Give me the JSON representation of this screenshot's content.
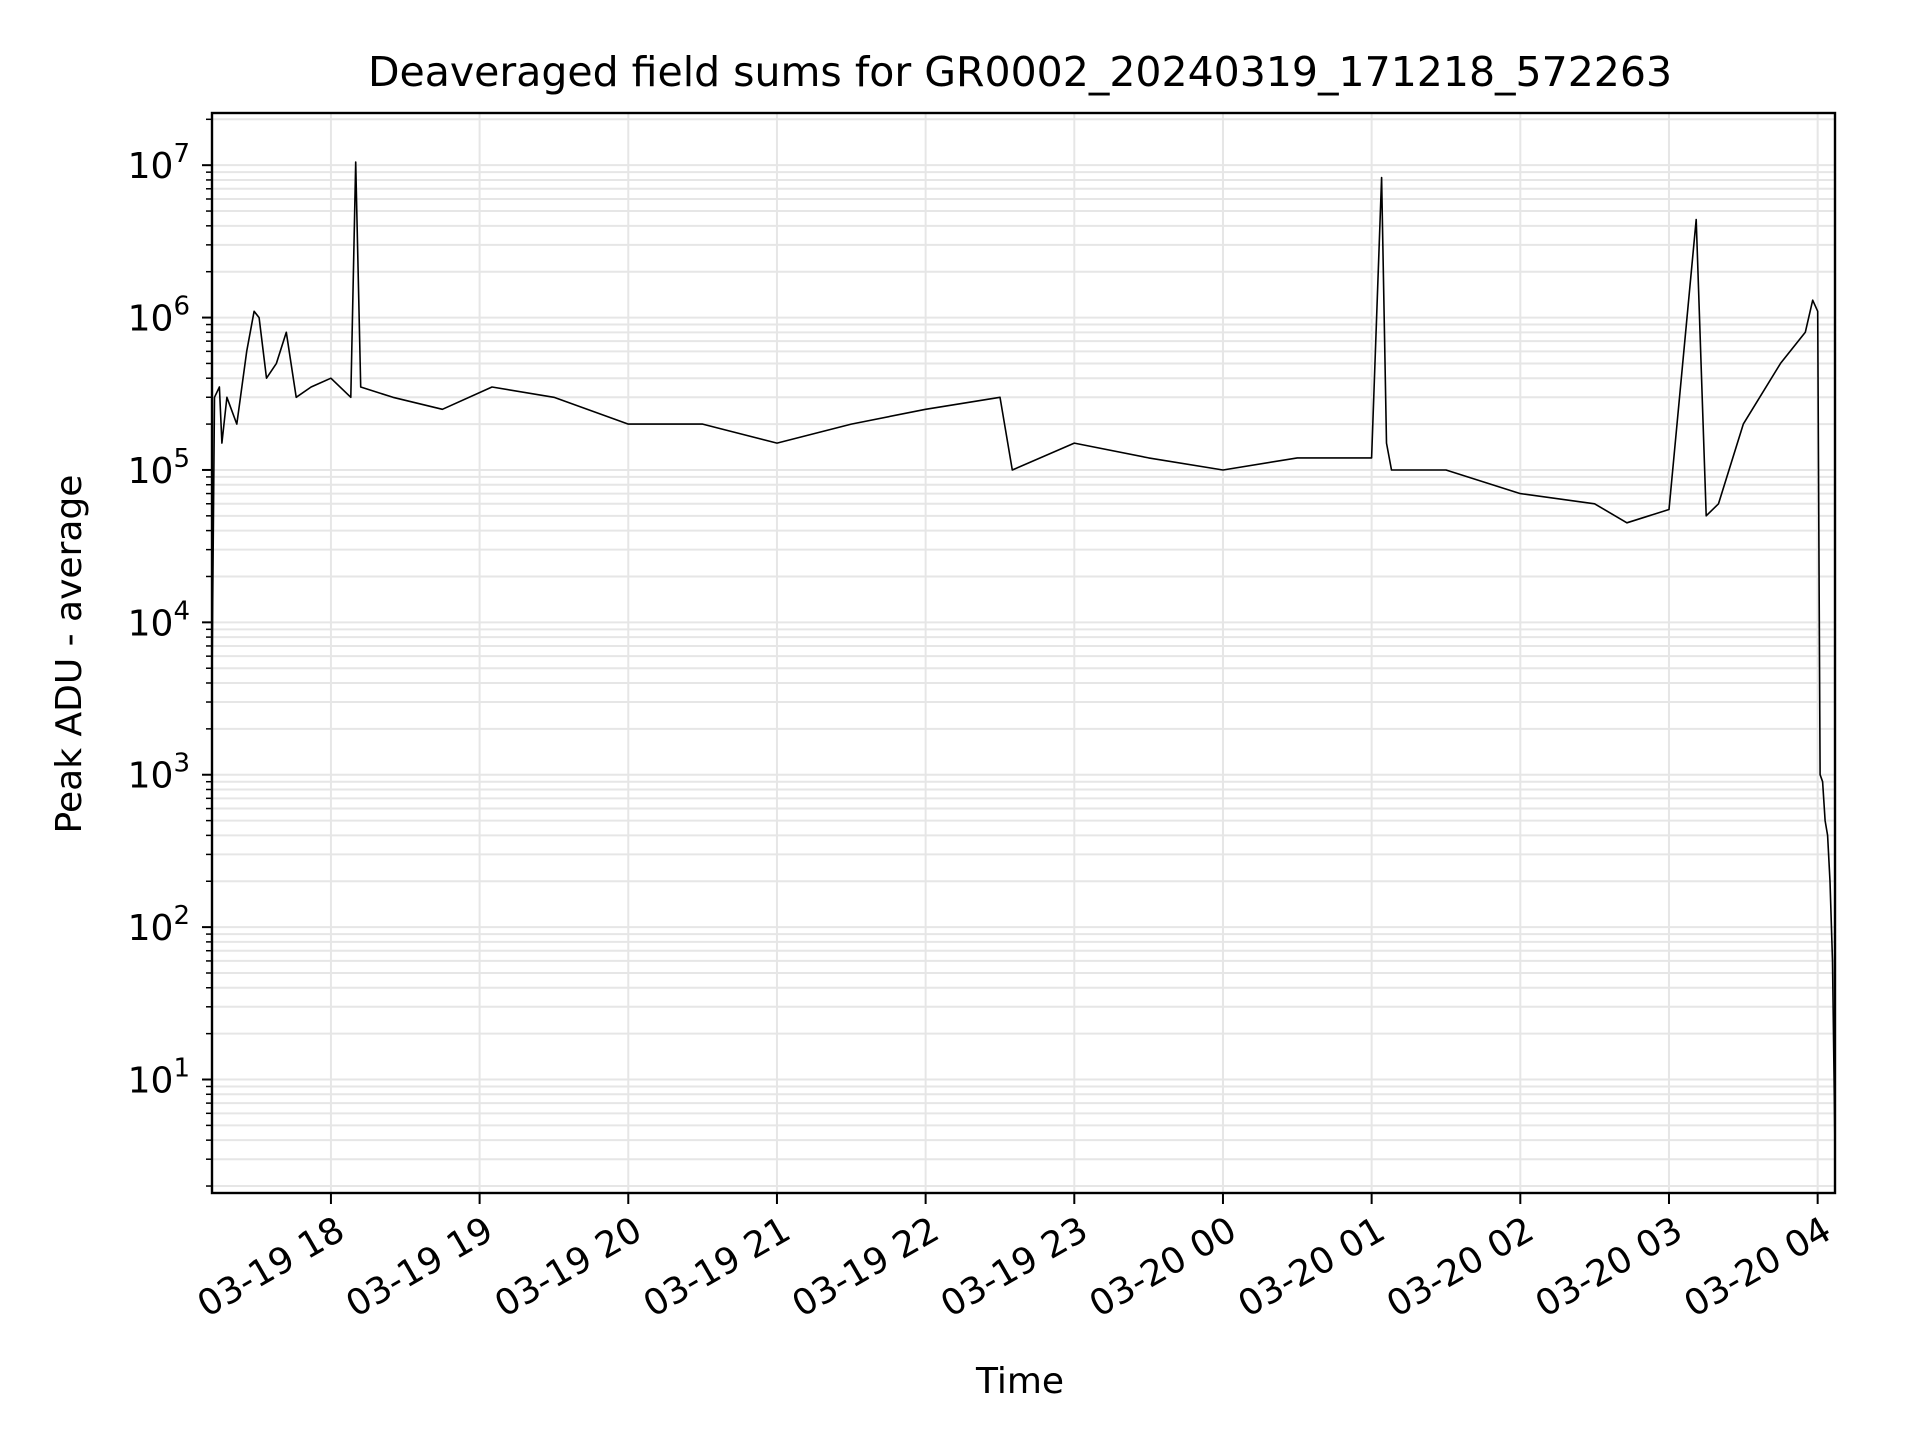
{
  "chart_data": {
    "type": "line",
    "title": "Deaveraged field sums for GR0002_20240319_171218_572263",
    "xlabel": "Time",
    "ylabel": "Peak ADU - average",
    "yscale": "log",
    "grid": true,
    "legend": "none",
    "line_color": "#000000",
    "grid_color": "#e6e6e6",
    "xlim": [
      "2024-03-19 17:12",
      "2024-03-20 04:07"
    ],
    "ylim": [
      1.8,
      22000000
    ],
    "x_ticks": [
      "03-19 18",
      "03-19 19",
      "03-19 20",
      "03-19 21",
      "03-19 22",
      "03-19 23",
      "03-20 00",
      "03-20 01",
      "03-20 02",
      "03-20 03",
      "03-20 04"
    ],
    "y_ticks": [
      {
        "base": "10",
        "exp": "1",
        "value": 10
      },
      {
        "base": "10",
        "exp": "2",
        "value": 100
      },
      {
        "base": "10",
        "exp": "3",
        "value": 1000
      },
      {
        "base": "10",
        "exp": "4",
        "value": 10000
      },
      {
        "base": "10",
        "exp": "5",
        "value": 100000
      },
      {
        "base": "10",
        "exp": "6",
        "value": 1000000
      },
      {
        "base": "10",
        "exp": "7",
        "value": 10000000
      }
    ],
    "series": [
      {
        "x": [
          "2024-03-19 17:12",
          "2024-03-19 17:13",
          "2024-03-19 17:15",
          "2024-03-19 17:16",
          "2024-03-19 17:18",
          "2024-03-19 17:22",
          "2024-03-19 17:26",
          "2024-03-19 17:29",
          "2024-03-19 17:31",
          "2024-03-19 17:34",
          "2024-03-19 17:38",
          "2024-03-19 17:42",
          "2024-03-19 17:46",
          "2024-03-19 17:52",
          "2024-03-19 18:00",
          "2024-03-19 18:08",
          "2024-03-19 18:10",
          "2024-03-19 18:12",
          "2024-03-19 18:25",
          "2024-03-19 18:45",
          "2024-03-19 19:05",
          "2024-03-19 19:30",
          "2024-03-19 20:00",
          "2024-03-19 20:30",
          "2024-03-19 21:00",
          "2024-03-19 21:30",
          "2024-03-19 22:00",
          "2024-03-19 22:30",
          "2024-03-19 22:35",
          "2024-03-19 23:00",
          "2024-03-19 23:30",
          "2024-03-20 00:00",
          "2024-03-20 00:30",
          "2024-03-20 01:00",
          "2024-03-20 01:04",
          "2024-03-20 01:06",
          "2024-03-20 01:08",
          "2024-03-20 01:30",
          "2024-03-20 02:00",
          "2024-03-20 02:30",
          "2024-03-20 02:43",
          "2024-03-20 03:00",
          "2024-03-20 03:11",
          "2024-03-20 03:15",
          "2024-03-20 03:20",
          "2024-03-20 03:30",
          "2024-03-20 03:45",
          "2024-03-20 03:55",
          "2024-03-20 03:58",
          "2024-03-20 04:00",
          "2024-03-20 04:01",
          "2024-03-20 04:02",
          "2024-03-20 04:03",
          "2024-03-20 04:04",
          "2024-03-20 04:05",
          "2024-03-20 04:06",
          "2024-03-20 04:07"
        ],
        "y": [
          4000,
          300000,
          350000,
          150000,
          300000,
          200000,
          600000,
          1100000,
          1000000,
          400000,
          500000,
          800000,
          300000,
          350000,
          400000,
          300000,
          10500000,
          350000,
          300000,
          250000,
          350000,
          300000,
          200000,
          200000,
          150000,
          200000,
          250000,
          300000,
          100000,
          150000,
          120000,
          100000,
          120000,
          120000,
          8300000,
          150000,
          100000,
          100000,
          70000,
          60000,
          45000,
          55000,
          4400000,
          50000,
          60000,
          200000,
          500000,
          800000,
          1300000,
          1100000,
          1000,
          900,
          500,
          400,
          200,
          60,
          3.5
        ]
      }
    ]
  }
}
